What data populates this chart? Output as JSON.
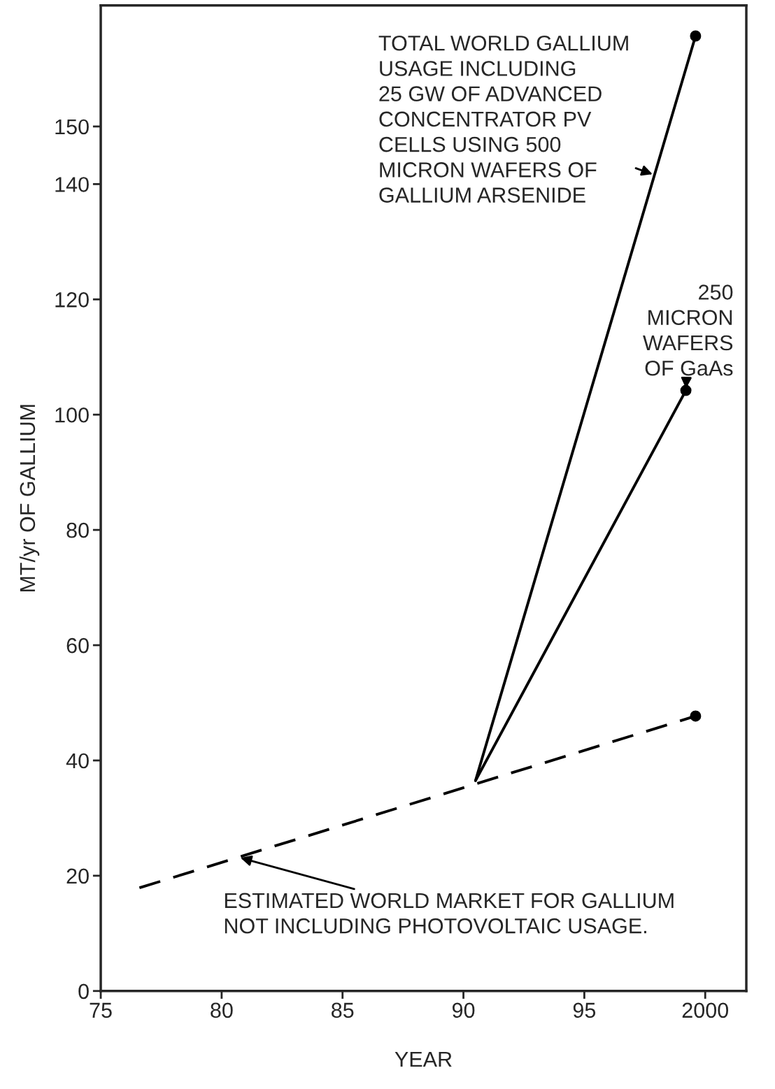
{
  "chart_data": {
    "type": "line",
    "xlabel": "YEAR",
    "ylabel": "MT/yr OF GALLIUM",
    "xlim": [
      1975,
      2001.7
    ],
    "xticks": [
      {
        "value": 1975,
        "label": "75"
      },
      {
        "value": 1980,
        "label": "80"
      },
      {
        "value": 1985,
        "label": "85"
      },
      {
        "value": 1990,
        "label": "90"
      },
      {
        "value": 1995,
        "label": "95"
      },
      2000
    ],
    "ylim": [
      0,
      171
    ],
    "yticks": [
      0,
      20,
      40,
      60,
      80,
      100,
      120,
      140,
      150
    ],
    "grid": false,
    "legend": false,
    "series": [
      {
        "color": "#000000",
        "line_style": "dashed",
        "x": [
          1976.6,
          1999.6
        ],
        "values": [
          17.9,
          47.7
        ]
      },
      {
        "color": "#000000",
        "line_style": "solid",
        "x": [
          1990.5,
          1999.6
        ],
        "values": [
          36.5,
          165.7
        ]
      },
      {
        "color": "#000000",
        "line_style": "solid",
        "x": [
          1990.5,
          1999.2
        ],
        "values": [
          36.5,
          104.2
        ]
      },
      {
        "type": "scatter",
        "color": "#000000",
        "marker": "circle",
        "x": [
          1999.6,
          1999.2,
          1999.6
        ],
        "values": [
          165.7,
          104.2,
          47.7
        ]
      }
    ],
    "annotations": [
      {
        "text": "TOTAL WORLD GALLIUM\nUSAGE INCLUDING\n25 GW OF ADVANCED\nCONCENTRATOR PV\nCELLS USING 500\nMICRON WAFERS OF\nGALLIUM ARSENIDE",
        "x": 1997.9,
        "y": 141.6
      },
      {
        "text": "250\nMICRON\nWAFERS\nOF GaAs",
        "x": 1999.2,
        "y": 104.2
      },
      {
        "text": "ESTIMATED WORLD MARKET FOR GALLIUM\nNOT INCLUDING PHOTOVOLTAIC USAGE.",
        "x": 1980.7,
        "y": 23.2
      }
    ]
  }
}
